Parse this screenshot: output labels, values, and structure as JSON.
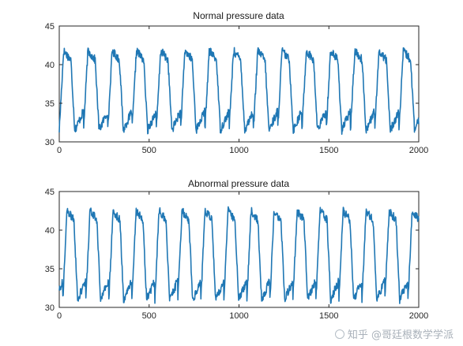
{
  "chart_data": [
    {
      "type": "line",
      "title": "Normal pressure data",
      "xlabel": "",
      "ylabel": "",
      "xlim": [
        0,
        2000
      ],
      "ylim": [
        30,
        45
      ],
      "xticks": [
        0,
        500,
        1000,
        1500,
        2000
      ],
      "yticks": [
        30,
        35,
        40,
        45
      ],
      "grid": false,
      "series_color": "#1f77b4",
      "period": 135,
      "phase": 0,
      "min_value": 31.5,
      "max_value": 41.8,
      "series": [
        {
          "x": [
            0,
            30,
            45,
            60,
            105,
            120,
            165,
            180,
            195,
            240,
            255,
            300,
            315,
            330,
            375,
            390,
            435,
            450,
            465,
            510,
            525,
            570,
            585,
            600,
            645,
            660,
            705,
            720,
            735,
            780,
            795,
            840,
            855,
            870,
            915,
            930,
            975,
            990,
            1005,
            1050,
            1065,
            1110,
            1125,
            1140,
            1185,
            1200,
            1245,
            1260,
            1275,
            1320,
            1335,
            1380,
            1395,
            1410,
            1455,
            1470,
            1515,
            1530,
            1545,
            1590,
            1605,
            1650,
            1665,
            1680,
            1725,
            1740,
            1785,
            1800,
            1815,
            1860,
            1875,
            1920,
            1935,
            1950,
            1995,
            2000
          ],
          "values": [
            33,
            42,
            41.5,
            31.5,
            41.5,
            33,
            42,
            41.5,
            31.5,
            41.5,
            33,
            42,
            41.5,
            31.5,
            41.5,
            33,
            42,
            41.5,
            31.5,
            41.5,
            33,
            42,
            41.5,
            31.5,
            41.5,
            33,
            42,
            41.5,
            31.5,
            41.5,
            33,
            42,
            41.5,
            31.5,
            41.5,
            33,
            42,
            41.5,
            31.5,
            41.5,
            33,
            42,
            41.5,
            31.5,
            41.5,
            33,
            42,
            41.5,
            31.5,
            41.5,
            33,
            42,
            41.5,
            31.5,
            41.5,
            33,
            42,
            41.5,
            31.5,
            41.5,
            33,
            42,
            41.5,
            31.5,
            41.5,
            33,
            42,
            41.5,
            31.5,
            41.5,
            33,
            42,
            41.5,
            31.5,
            41.5,
            33
          ]
        }
      ]
    },
    {
      "type": "line",
      "title": "Abnormal pressure data",
      "xlabel": "",
      "ylabel": "",
      "xlim": [
        0,
        2000
      ],
      "ylim": [
        30,
        45
      ],
      "xticks": [
        0,
        500,
        1000,
        1500,
        2000
      ],
      "yticks": [
        30,
        35,
        40,
        45
      ],
      "grid": false,
      "series_color": "#1f77b4",
      "period": 128,
      "phase": 20,
      "min_value": 31,
      "max_value": 42.5,
      "series": [
        {
          "x": [
            0,
            20,
            40,
            60,
            80,
            100,
            148,
            168,
            188,
            208,
            228,
            276,
            296,
            316,
            336,
            356,
            404,
            424,
            444,
            464,
            484,
            532,
            552,
            572,
            592,
            612,
            660,
            680,
            700,
            720,
            740,
            788,
            808,
            828,
            848,
            868,
            916,
            936,
            956,
            976,
            996,
            1044,
            1064,
            1084,
            1104,
            1124,
            1172,
            1192,
            1212,
            1232,
            1252,
            1300,
            1320,
            1340,
            1360,
            1380,
            1428,
            1448,
            1468,
            1488,
            1508,
            1556,
            1576,
            1596,
            1616,
            1636,
            1684,
            1704,
            1724,
            1744,
            1764,
            1812,
            1832,
            1852,
            1872,
            1892,
            1940,
            1960,
            1980,
            2000
          ],
          "values": [
            36,
            33,
            41.5,
            42,
            31,
            41.5,
            33,
            41.5,
            42,
            31,
            41.5,
            33,
            41.5,
            42,
            31,
            41.5,
            33,
            41.5,
            42,
            31,
            41.5,
            33,
            41.5,
            42,
            31,
            41.5,
            33,
            41.5,
            42,
            31,
            41.5,
            33,
            41.5,
            42,
            31,
            41.5,
            33,
            41.5,
            42,
            31,
            41.5,
            33,
            41.5,
            42,
            31,
            41.5,
            33,
            41.5,
            42,
            31,
            41.5,
            33,
            41.5,
            42,
            31,
            41.5,
            33,
            41.5,
            42,
            31,
            41.5,
            33,
            41.5,
            42,
            31,
            41.5,
            33,
            41.5,
            42,
            31,
            41.5,
            33,
            41.5,
            42,
            31,
            41.5,
            33,
            41.5,
            42,
            31
          ]
        }
      ]
    }
  ],
  "watermark": {
    "text": "知乎 @哥廷根数学学派"
  }
}
